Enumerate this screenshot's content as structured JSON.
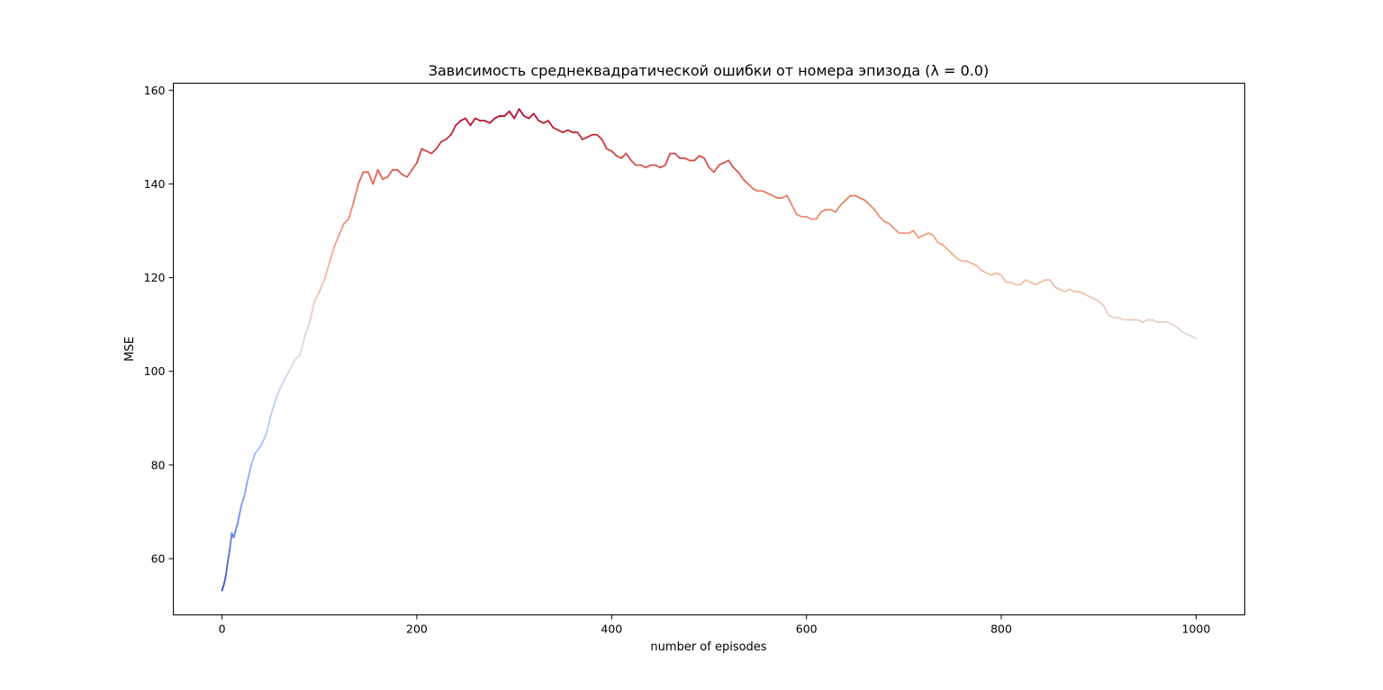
{
  "chart_data": {
    "type": "line",
    "title": "Зависимость среднеквадратической ошибки от номера эпизода (λ = 0.0)",
    "xlabel": "number of episodes",
    "ylabel": "MSE",
    "xlim": [
      -50,
      1050
    ],
    "ylim": [
      48,
      161.5
    ],
    "xticks": [
      0,
      200,
      400,
      600,
      800,
      1000
    ],
    "yticks": [
      60,
      80,
      100,
      120,
      140,
      160
    ],
    "grid": false,
    "legend": "none",
    "colormap": "coolwarm",
    "colormap_stops": [
      "#3b4cc0",
      "#7396f5",
      "#b0cbfc",
      "#dcdddd",
      "#f6b79c",
      "#e8765c",
      "#b40426"
    ],
    "series": [
      {
        "x": [
          0,
          2,
          4,
          6,
          8,
          10,
          12,
          14,
          16,
          18,
          20,
          23,
          26,
          30,
          34,
          38,
          42,
          46,
          50,
          55,
          60,
          65,
          70,
          75,
          80,
          85,
          90,
          95,
          100,
          105,
          110,
          115,
          120,
          125,
          130,
          135,
          140,
          145,
          150,
          155,
          160,
          165,
          170,
          175,
          180,
          185,
          190,
          195,
          200,
          205,
          210,
          215,
          220,
          225,
          230,
          235,
          240,
          245,
          250,
          255,
          260,
          265,
          270,
          275,
          280,
          285,
          290,
          295,
          300,
          305,
          310,
          315,
          320,
          325,
          330,
          335,
          340,
          345,
          350,
          355,
          360,
          365,
          370,
          375,
          380,
          385,
          390,
          395,
          400,
          405,
          410,
          415,
          420,
          425,
          430,
          435,
          440,
          445,
          450,
          455,
          460,
          465,
          470,
          475,
          480,
          485,
          490,
          495,
          500,
          505,
          510,
          515,
          520,
          525,
          530,
          535,
          540,
          545,
          550,
          555,
          560,
          565,
          570,
          575,
          580,
          585,
          590,
          595,
          600,
          605,
          610,
          615,
          620,
          625,
          630,
          635,
          640,
          645,
          650,
          655,
          660,
          665,
          670,
          675,
          680,
          685,
          690,
          695,
          700,
          705,
          710,
          715,
          720,
          725,
          730,
          735,
          740,
          745,
          750,
          755,
          760,
          765,
          770,
          775,
          780,
          785,
          790,
          795,
          800,
          805,
          810,
          815,
          820,
          825,
          830,
          835,
          840,
          845,
          850,
          855,
          860,
          865,
          870,
          875,
          880,
          885,
          890,
          895,
          900,
          905,
          910,
          915,
          920,
          925,
          930,
          935,
          940,
          945,
          950,
          955,
          960,
          965,
          970,
          975,
          980,
          985,
          990,
          995,
          1000
        ],
        "values": [
          53.2,
          54.5,
          56.5,
          59.5,
          62.0,
          65.5,
          64.5,
          66.0,
          67.5,
          69.5,
          71.5,
          73.5,
          76.5,
          80.0,
          82.5,
          83.5,
          85.0,
          87.0,
          90.5,
          94.0,
          96.5,
          98.5,
          100.5,
          102.5,
          103.5,
          107.5,
          110.5,
          115.0,
          117.0,
          119.5,
          123.0,
          126.5,
          129.0,
          131.5,
          132.5,
          136.0,
          140.0,
          142.5,
          142.5,
          140.0,
          143.0,
          141.0,
          141.5,
          143.0,
          143.0,
          142.0,
          141.5,
          143.0,
          144.5,
          147.5,
          147.0,
          146.5,
          147.5,
          149.0,
          149.5,
          150.5,
          152.5,
          153.5,
          154.0,
          152.5,
          154.0,
          153.5,
          153.5,
          153.0,
          154.0,
          154.5,
          154.5,
          155.5,
          154.0,
          156.0,
          154.5,
          154.0,
          155.0,
          153.5,
          153.0,
          153.5,
          152.0,
          151.5,
          151.0,
          151.5,
          151.0,
          151.0,
          149.5,
          150.0,
          150.5,
          150.5,
          149.5,
          147.5,
          147.0,
          146.0,
          145.5,
          146.5,
          145.0,
          144.0,
          144.0,
          143.5,
          144.0,
          144.0,
          143.5,
          144.0,
          146.5,
          146.5,
          145.5,
          145.5,
          145.0,
          145.0,
          146.0,
          145.5,
          143.5,
          142.5,
          144.0,
          144.5,
          145.0,
          143.5,
          142.5,
          141.0,
          140.0,
          139.0,
          138.5,
          138.5,
          138.0,
          137.5,
          137.0,
          137.0,
          137.5,
          135.5,
          133.5,
          133.0,
          133.0,
          132.5,
          132.5,
          134.0,
          134.5,
          134.5,
          134.0,
          135.5,
          136.5,
          137.5,
          137.5,
          137.0,
          136.5,
          135.5,
          134.5,
          133.0,
          132.0,
          131.5,
          130.5,
          129.5,
          129.5,
          129.5,
          130.0,
          128.5,
          129.0,
          129.5,
          129.0,
          127.5,
          127.0,
          126.0,
          125.0,
          124.0,
          123.5,
          123.5,
          123.0,
          122.5,
          121.5,
          121.0,
          120.5,
          121.0,
          120.5,
          119.0,
          119.0,
          118.5,
          118.5,
          119.5,
          119.0,
          118.5,
          119.0,
          119.5,
          119.5,
          118.0,
          117.5,
          117.0,
          117.5,
          117.0,
          117.0,
          116.5,
          116.0,
          115.5,
          115.0,
          114.0,
          112.0,
          111.5,
          111.5,
          111.0,
          111.0,
          111.0,
          111.0,
          110.5,
          111.0,
          111.0,
          110.5,
          110.5,
          110.5,
          110.0,
          109.5,
          108.5,
          108.0,
          107.5,
          107.0
        ]
      }
    ]
  }
}
